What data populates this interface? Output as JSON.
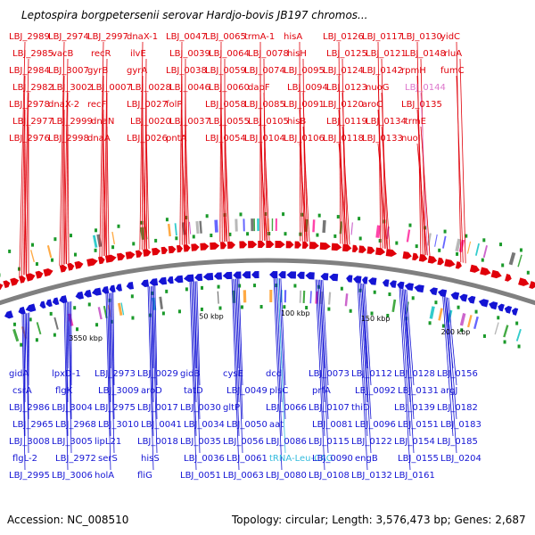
{
  "title": "Leptospira borgpetersenii serovar Hardjo-bovis JB197 chromos...",
  "footer": {
    "accession": "Accession: NC_008510",
    "summary": "Topology: circular; Length: 3,576,473 bp; Genes: 2,687"
  },
  "ticks": [
    "3550 kbp",
    "50 kbp",
    "100 kbp",
    "150 kbp",
    "200 kbp"
  ],
  "colors": {
    "forward": "#e0000a",
    "reverse": "#1414d4",
    "trna": "#33bbdd",
    "rrna": "#dd77cc",
    "backbone": "#808080"
  },
  "forward_labels": [
    {
      "text": "LBJ_2989",
      "c": "f"
    },
    {
      "text": "LBJ_2985",
      "c": "f"
    },
    {
      "text": "LBJ_2984",
      "c": "f"
    },
    {
      "text": "LBJ_2982",
      "c": "f"
    },
    {
      "text": "LBJ_2978",
      "c": "f"
    },
    {
      "text": "LBJ_2977",
      "c": "f"
    },
    {
      "text": "LBJ_2976",
      "c": "f"
    },
    {
      "text": "LBJ_2974",
      "c": "f"
    },
    {
      "text": "vacB",
      "c": "f"
    },
    {
      "text": "LBJ_3007",
      "c": "f"
    },
    {
      "text": "LBJ_3002",
      "c": "f"
    },
    {
      "text": "dnaX-2",
      "c": "f"
    },
    {
      "text": "LBJ_2999",
      "c": "f"
    },
    {
      "text": "LBJ_2998",
      "c": "f"
    },
    {
      "text": "LBJ_2997",
      "c": "f"
    },
    {
      "text": "recR",
      "c": "f"
    },
    {
      "text": "gyrB",
      "c": "f"
    },
    {
      "text": "LBJ_0007",
      "c": "f"
    },
    {
      "text": "recF",
      "c": "f"
    },
    {
      "text": "dnaN",
      "c": "f"
    },
    {
      "text": "dnaA",
      "c": "f"
    },
    {
      "text": "dnaX-1",
      "c": "f"
    },
    {
      "text": "ilvE",
      "c": "f"
    },
    {
      "text": "gyrA",
      "c": "f"
    },
    {
      "text": "LBJ_0028",
      "c": "f"
    },
    {
      "text": "LBJ_0027",
      "c": "f"
    },
    {
      "text": "LBJ_0020",
      "c": "f"
    },
    {
      "text": "LBJ_0026",
      "c": "f"
    },
    {
      "text": "LBJ_0047",
      "c": "f"
    },
    {
      "text": "LBJ_0039",
      "c": "f"
    },
    {
      "text": "LBJ_0038",
      "c": "f"
    },
    {
      "text": "LBJ_0046",
      "c": "f"
    },
    {
      "text": "folP",
      "c": "f"
    },
    {
      "text": "LBJ_0037",
      "c": "f"
    },
    {
      "text": "pntA",
      "c": "f"
    },
    {
      "text": "LBJ_0065",
      "c": "f"
    },
    {
      "text": "LBJ_0064",
      "c": "f"
    },
    {
      "text": "LBJ_0059",
      "c": "f"
    },
    {
      "text": "LBJ_0060",
      "c": "f"
    },
    {
      "text": "LBJ_0058",
      "c": "f"
    },
    {
      "text": "LBJ_0055",
      "c": "f"
    },
    {
      "text": "LBJ_0054",
      "c": "f"
    },
    {
      "text": "trmA-1",
      "c": "f"
    },
    {
      "text": "LBJ_0078",
      "c": "f"
    },
    {
      "text": "LBJ_0074",
      "c": "f"
    },
    {
      "text": "dapF",
      "c": "f"
    },
    {
      "text": "LBJ_0085",
      "c": "f"
    },
    {
      "text": "LBJ_0105",
      "c": "f"
    },
    {
      "text": "LBJ_0104",
      "c": "f"
    },
    {
      "text": "hisA",
      "c": "f"
    },
    {
      "text": "hisH",
      "c": "f"
    },
    {
      "text": "LBJ_0095",
      "c": "f"
    },
    {
      "text": "LBJ_0094",
      "c": "f"
    },
    {
      "text": "LBJ_0091",
      "c": "f"
    },
    {
      "text": "hisB",
      "c": "f"
    },
    {
      "text": "LBJ_0106",
      "c": "f"
    },
    {
      "text": "LBJ_0126",
      "c": "f"
    },
    {
      "text": "LBJ_0125",
      "c": "f"
    },
    {
      "text": "LBJ_0124",
      "c": "f"
    },
    {
      "text": "LBJ_0123",
      "c": "f"
    },
    {
      "text": "LBJ_0120",
      "c": "f"
    },
    {
      "text": "LBJ_0119",
      "c": "f"
    },
    {
      "text": "LBJ_0118",
      "c": "f"
    },
    {
      "text": "LBJ_0117",
      "c": "f"
    },
    {
      "text": "LBJ_0121",
      "c": "f"
    },
    {
      "text": "LBJ_0142",
      "c": "f"
    },
    {
      "text": "nuoG",
      "c": "f"
    },
    {
      "text": "aroC",
      "c": "f"
    },
    {
      "text": "LBJ_0134",
      "c": "f"
    },
    {
      "text": "LBJ_0133",
      "c": "f"
    },
    {
      "text": "LBJ_0130",
      "c": "f"
    },
    {
      "text": "LBJ_0148",
      "c": "f"
    },
    {
      "text": "rpmH",
      "c": "f"
    },
    {
      "text": "LBJ_0144",
      "c": "r"
    },
    {
      "text": "LBJ_0135",
      "c": "f"
    },
    {
      "text": "trmE",
      "c": "f"
    },
    {
      "text": "nuoI",
      "c": "f"
    },
    {
      "text": "yidC",
      "c": "f"
    },
    {
      "text": "rluA",
      "c": "f"
    },
    {
      "text": "fumC",
      "c": "f"
    }
  ],
  "reverse_labels": [
    {
      "text": "gidA",
      "c": "b"
    },
    {
      "text": "csrA",
      "c": "b"
    },
    {
      "text": "LBJ_2986",
      "c": "b"
    },
    {
      "text": "LBJ_2965",
      "c": "b"
    },
    {
      "text": "LBJ_3008",
      "c": "b"
    },
    {
      "text": "flgL-2",
      "c": "b"
    },
    {
      "text": "LBJ_2995",
      "c": "b"
    },
    {
      "text": "lpxD-1",
      "c": "b"
    },
    {
      "text": "flgK",
      "c": "b"
    },
    {
      "text": "LBJ_3004",
      "c": "b"
    },
    {
      "text": "LBJ_2968",
      "c": "b"
    },
    {
      "text": "LBJ_3005",
      "c": "b"
    },
    {
      "text": "LBJ_2972",
      "c": "b"
    },
    {
      "text": "LBJ_3006",
      "c": "b"
    },
    {
      "text": "LBJ_2973",
      "c": "b"
    },
    {
      "text": "LBJ_3009",
      "c": "b"
    },
    {
      "text": "LBJ_2975",
      "c": "b"
    },
    {
      "text": "LBJ_3010",
      "c": "b"
    },
    {
      "text": "lipL21",
      "c": "b"
    },
    {
      "text": "serS",
      "c": "b"
    },
    {
      "text": "holA",
      "c": "b"
    },
    {
      "text": "LBJ_0029",
      "c": "b"
    },
    {
      "text": "aroD",
      "c": "b"
    },
    {
      "text": "LBJ_0017",
      "c": "b"
    },
    {
      "text": "LBJ_0041",
      "c": "b"
    },
    {
      "text": "LBJ_0018",
      "c": "b"
    },
    {
      "text": "hisS",
      "c": "b"
    },
    {
      "text": "fliG",
      "c": "b"
    },
    {
      "text": "gidB",
      "c": "b"
    },
    {
      "text": "tatD",
      "c": "b"
    },
    {
      "text": "LBJ_0030",
      "c": "b"
    },
    {
      "text": "LBJ_0034",
      "c": "b"
    },
    {
      "text": "LBJ_0035",
      "c": "b"
    },
    {
      "text": "LBJ_0036",
      "c": "b"
    },
    {
      "text": "LBJ_0051",
      "c": "b"
    },
    {
      "text": "cysE",
      "c": "b"
    },
    {
      "text": "LBJ_0049",
      "c": "b"
    },
    {
      "text": "gltP",
      "c": "b"
    },
    {
      "text": "LBJ_0050",
      "c": "b"
    },
    {
      "text": "LBJ_0056",
      "c": "b"
    },
    {
      "text": "LBJ_0061",
      "c": "b"
    },
    {
      "text": "LBJ_0063",
      "c": "b"
    },
    {
      "text": "dcd",
      "c": "b"
    },
    {
      "text": "plsC",
      "c": "b"
    },
    {
      "text": "LBJ_0066",
      "c": "b"
    },
    {
      "text": "aat",
      "c": "b"
    },
    {
      "text": "LBJ_0086",
      "c": "b"
    },
    {
      "text": "tRNA-Leu-CAG",
      "c": "t"
    },
    {
      "text": "LBJ_0080",
      "c": "b"
    },
    {
      "text": "LBJ_0073",
      "c": "b"
    },
    {
      "text": "prfA",
      "c": "b"
    },
    {
      "text": "LBJ_0107",
      "c": "b"
    },
    {
      "text": "LBJ_0081",
      "c": "b"
    },
    {
      "text": "LBJ_0115",
      "c": "b"
    },
    {
      "text": "LBJ_0090",
      "c": "b"
    },
    {
      "text": "LBJ_0108",
      "c": "b"
    },
    {
      "text": "LBJ_0112",
      "c": "b"
    },
    {
      "text": "LBJ_0092",
      "c": "b"
    },
    {
      "text": "thiD",
      "c": "b"
    },
    {
      "text": "LBJ_0096",
      "c": "b"
    },
    {
      "text": "LBJ_0122",
      "c": "b"
    },
    {
      "text": "engB",
      "c": "b"
    },
    {
      "text": "LBJ_0132",
      "c": "b"
    },
    {
      "text": "LBJ_0128",
      "c": "b"
    },
    {
      "text": "LBJ_0131",
      "c": "b"
    },
    {
      "text": "LBJ_0139",
      "c": "b"
    },
    {
      "text": "LBJ_0151",
      "c": "b"
    },
    {
      "text": "LBJ_0154",
      "c": "b"
    },
    {
      "text": "LBJ_0155",
      "c": "b"
    },
    {
      "text": "LBJ_0161",
      "c": "b"
    },
    {
      "text": "LBJ_0156",
      "c": "b"
    },
    {
      "text": "argJ",
      "c": "b"
    },
    {
      "text": "LBJ_0182",
      "c": "b"
    },
    {
      "text": "LBJ_0183",
      "c": "b"
    },
    {
      "text": "LBJ_0185",
      "c": "b"
    },
    {
      "text": "LBJ_0204",
      "c": "b"
    }
  ]
}
